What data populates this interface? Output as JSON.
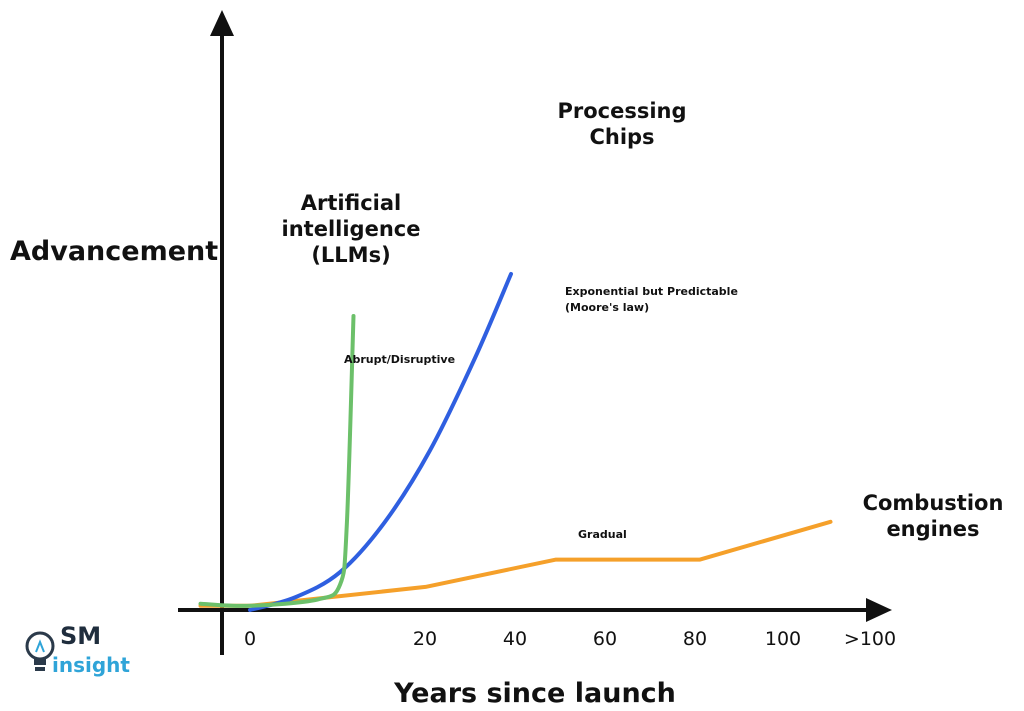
{
  "chart_data": {
    "type": "line",
    "xlabel": "Years since launch",
    "ylabel": "Advancement",
    "x_ticks": [
      "0",
      "20",
      "40",
      "60",
      "80",
      "100",
      ">100"
    ],
    "grid": false,
    "series": [
      {
        "name": "Artificial intelligence (LLMs)",
        "label_lines": [
          "Artificial",
          "intelligence",
          "(LLMs)"
        ],
        "color": "#6cc06a",
        "annotation": "Abrupt/Disruptive",
        "points": [
          [
            -11,
            1.5
          ],
          [
            0,
            1
          ],
          [
            15,
            2.5
          ],
          [
            20,
            6
          ],
          [
            21.5,
            20
          ],
          [
            23,
            70
          ]
        ]
      },
      {
        "name": "Processing Chips",
        "label_lines": [
          "Processing",
          "Chips"
        ],
        "color": "#2f5fe0",
        "annotation_lines": [
          "Exponential but Predictable",
          "(Moore's law)"
        ],
        "points": [
          [
            0,
            0
          ],
          [
            10,
            3
          ],
          [
            20,
            9
          ],
          [
            30,
            21
          ],
          [
            40,
            38
          ],
          [
            50,
            60
          ],
          [
            58,
            80
          ]
        ]
      },
      {
        "name": "Combustion engines",
        "label_lines": [
          "Combustion",
          "engines"
        ],
        "color": "#f5a02a",
        "annotation": "Gradual",
        "points": [
          [
            -11,
            1
          ],
          [
            0,
            1
          ],
          [
            39,
            5.5
          ],
          [
            68,
            12
          ],
          [
            100,
            12
          ],
          [
            129,
            21
          ]
        ]
      }
    ]
  },
  "logo": {
    "top": "SM",
    "bottom": "insight",
    "icon": "lightbulb-icon"
  }
}
